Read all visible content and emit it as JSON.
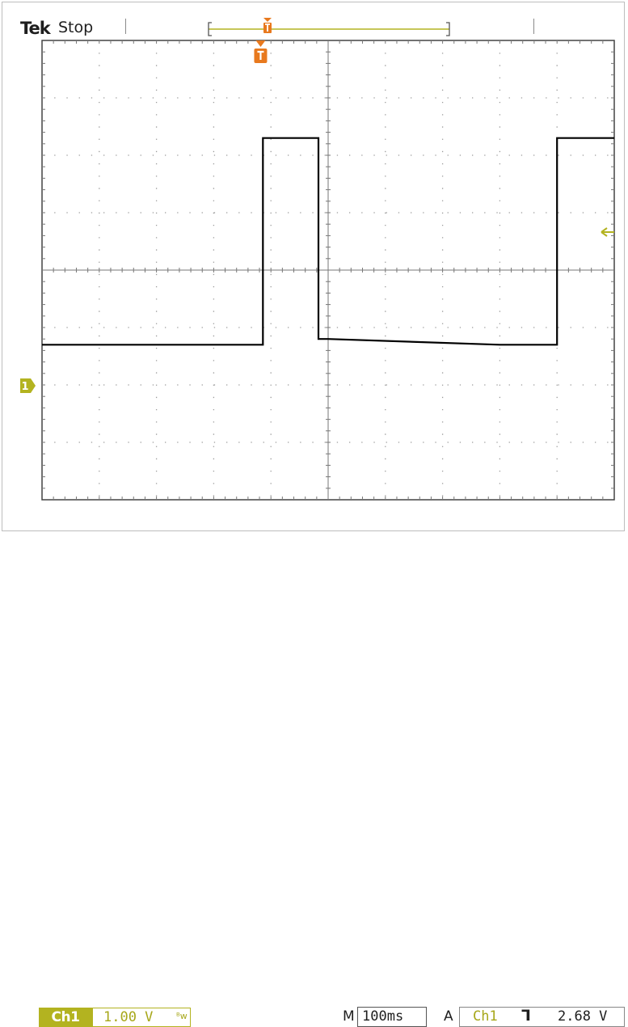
{
  "header": {
    "brand": "Tek",
    "run_state": "Stop"
  },
  "markers": {
    "channel_ground_label": "1"
  },
  "footer": {
    "channel": "Ch1",
    "volts_per_div": "1.00 V",
    "bandwidth_symbol": "ᵦw",
    "main_label": "M",
    "time_per_div": "100ms",
    "trigger_mode": "A",
    "trigger_source": "Ch1",
    "trigger_slope_symbol": "⫚",
    "trigger_level": "2.68 V"
  },
  "colors": {
    "channel": "#b3b320",
    "trigger_marker": "#e8791e",
    "trace": "#000000",
    "grid": "#9a9a9a"
  },
  "chart_data": {
    "type": "line",
    "title": "",
    "xlabel": "",
    "ylabel": "",
    "x_units": "ms",
    "y_units": "V",
    "xlim": [
      -500,
      500
    ],
    "ylim": [
      -2.0,
      6.0
    ],
    "divisions": {
      "x": 10,
      "y": 8
    },
    "grid": true,
    "series": [
      {
        "name": "",
        "x": [
          -500,
          -114,
          -114,
          -17,
          -17,
          0,
          300,
          400,
          400,
          500
        ],
        "y": [
          0.7,
          0.7,
          4.3,
          4.3,
          0.8,
          0.8,
          0.7,
          0.7,
          4.3,
          4.3
        ]
      }
    ]
  }
}
